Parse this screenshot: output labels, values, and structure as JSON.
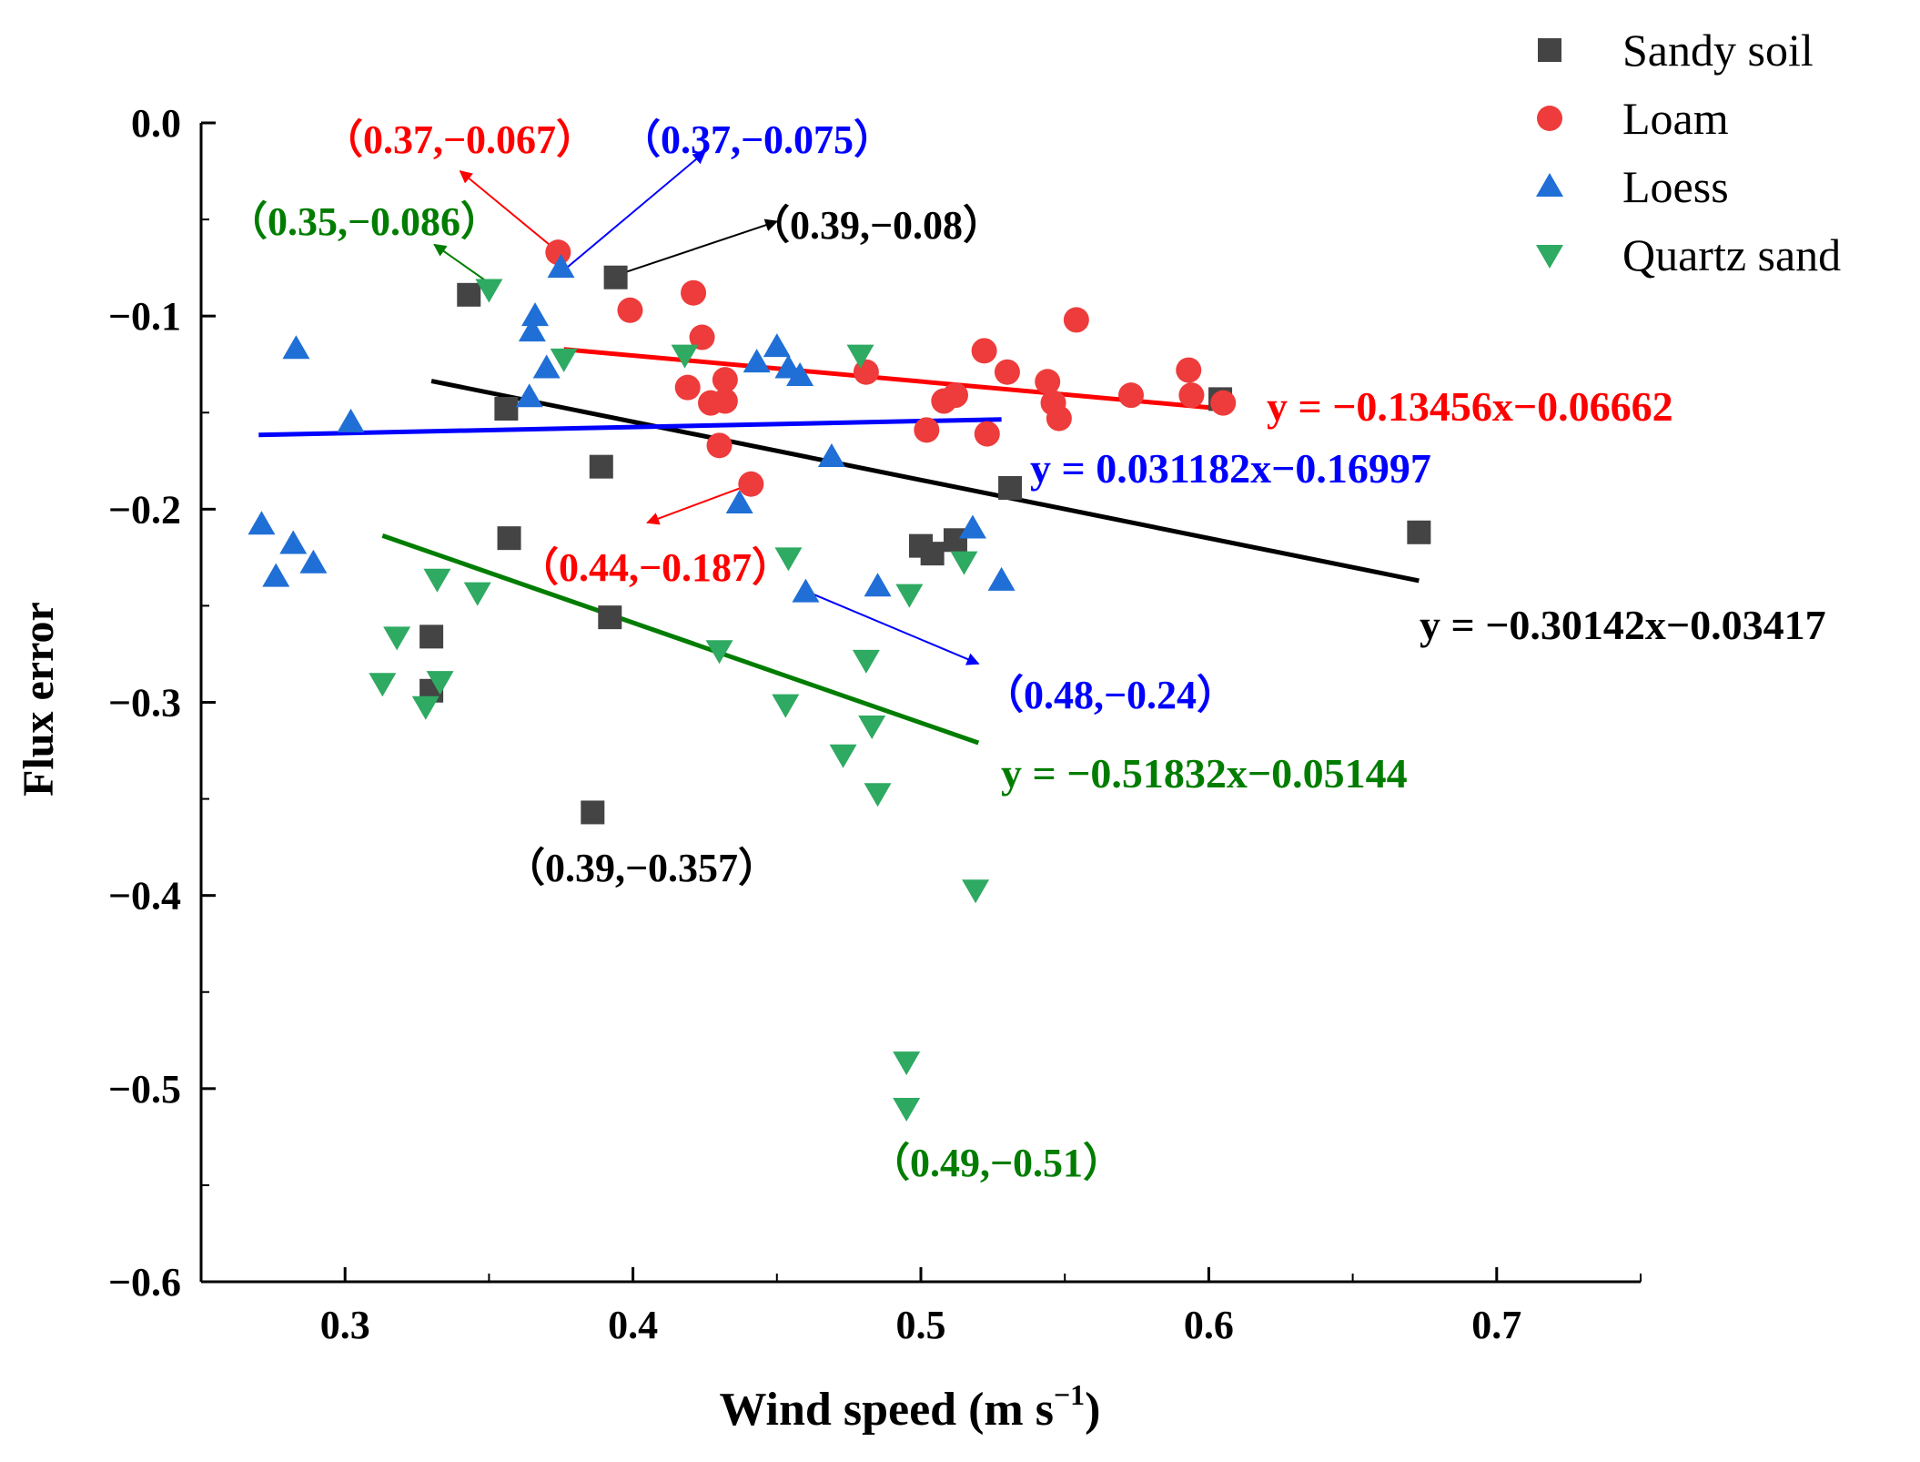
{
  "chart_data": {
    "type": "scatter",
    "xlabel": "Wind speed (m s",
    "xlabel_sup": "−1",
    "xlabel_close": ")",
    "ylabel": "Flux error",
    "xlim": [
      0.25,
      0.75
    ],
    "ylim": [
      -0.6,
      0.0
    ],
    "x_ticks": [
      0.3,
      0.4,
      0.5,
      0.6,
      0.7
    ],
    "x_tick_labels": [
      "0.3",
      "0.4",
      "0.5",
      "0.6",
      "0.7"
    ],
    "y_ticks": [
      0.0,
      -0.1,
      -0.2,
      -0.3,
      -0.4,
      -0.5,
      -0.6
    ],
    "y_tick_labels": [
      "0.0",
      "−0.1",
      "−0.2",
      "−0.3",
      "−0.4",
      "−0.5",
      "−0.6"
    ],
    "legend_position": "top-right",
    "series": [
      {
        "name": "Sandy soil",
        "marker": "square",
        "color": "#444444",
        "points": [
          [
            0.343,
            -0.089
          ],
          [
            0.394,
            -0.08
          ],
          [
            0.356,
            -0.148
          ],
          [
            0.389,
            -0.178
          ],
          [
            0.357,
            -0.215
          ],
          [
            0.392,
            -0.256
          ],
          [
            0.33,
            -0.266
          ],
          [
            0.33,
            -0.294
          ],
          [
            0.386,
            -0.357
          ],
          [
            0.5,
            -0.219
          ],
          [
            0.504,
            -0.223
          ],
          [
            0.512,
            -0.216
          ],
          [
            0.531,
            -0.189
          ],
          [
            0.604,
            -0.143
          ],
          [
            0.673,
            -0.212
          ]
        ],
        "fit": {
          "equation": "y = −0.30142x−0.03417",
          "color": "#000000",
          "x_range": [
            0.33,
            0.673
          ],
          "slope": -0.30142,
          "intercept": -0.03417
        }
      },
      {
        "name": "Loam",
        "marker": "circle",
        "color": "#ee3b3b",
        "points": [
          [
            0.374,
            -0.067
          ],
          [
            0.399,
            -0.097
          ],
          [
            0.421,
            -0.088
          ],
          [
            0.424,
            -0.111
          ],
          [
            0.419,
            -0.137
          ],
          [
            0.427,
            -0.145
          ],
          [
            0.432,
            -0.133
          ],
          [
            0.432,
            -0.144
          ],
          [
            0.43,
            -0.167
          ],
          [
            0.441,
            -0.187
          ],
          [
            0.481,
            -0.129
          ],
          [
            0.502,
            -0.159
          ],
          [
            0.508,
            -0.144
          ],
          [
            0.512,
            -0.141
          ],
          [
            0.522,
            -0.118
          ],
          [
            0.523,
            -0.161
          ],
          [
            0.53,
            -0.129
          ],
          [
            0.544,
            -0.134
          ],
          [
            0.546,
            -0.145
          ],
          [
            0.548,
            -0.153
          ],
          [
            0.554,
            -0.102
          ],
          [
            0.573,
            -0.141
          ],
          [
            0.593,
            -0.128
          ],
          [
            0.594,
            -0.141
          ],
          [
            0.605,
            -0.145
          ]
        ],
        "fit": {
          "equation": "y = −0.13456x−0.06662",
          "color": "#ff0000",
          "x_range": [
            0.376,
            0.6
          ],
          "slope": -0.13456,
          "intercept": -0.06662
        }
      },
      {
        "name": "Loess",
        "marker": "triangle-up",
        "color": "#1f6fd6",
        "points": [
          [
            0.375,
            -0.075
          ],
          [
            0.283,
            -0.117
          ],
          [
            0.302,
            -0.155
          ],
          [
            0.271,
            -0.208
          ],
          [
            0.276,
            -0.235
          ],
          [
            0.282,
            -0.218
          ],
          [
            0.289,
            -0.228
          ],
          [
            0.366,
            -0.1
          ],
          [
            0.365,
            -0.108
          ],
          [
            0.37,
            -0.127
          ],
          [
            0.364,
            -0.142
          ],
          [
            0.443,
            -0.124
          ],
          [
            0.45,
            -0.116
          ],
          [
            0.454,
            -0.127
          ],
          [
            0.458,
            -0.131
          ],
          [
            0.469,
            -0.173
          ],
          [
            0.437,
            -0.197
          ],
          [
            0.46,
            -0.243
          ],
          [
            0.485,
            -0.24
          ],
          [
            0.518,
            -0.21
          ],
          [
            0.528,
            -0.237
          ]
        ],
        "fit": {
          "equation": "y = 0.031182x−0.16997",
          "color": "#0000ff",
          "x_range": [
            0.27,
            0.528
          ],
          "slope": 0.031182,
          "intercept": -0.16997
        }
      },
      {
        "name": "Quartz sand",
        "marker": "triangle-down",
        "color": "#2eaa62",
        "points": [
          [
            0.35,
            -0.086
          ],
          [
            0.376,
            -0.122
          ],
          [
            0.418,
            -0.12
          ],
          [
            0.479,
            -0.12
          ],
          [
            0.332,
            -0.236
          ],
          [
            0.346,
            -0.243
          ],
          [
            0.318,
            -0.266
          ],
          [
            0.313,
            -0.29
          ],
          [
            0.333,
            -0.289
          ],
          [
            0.328,
            -0.302
          ],
          [
            0.43,
            -0.273
          ],
          [
            0.453,
            -0.301
          ],
          [
            0.454,
            -0.225
          ],
          [
            0.473,
            -0.327
          ],
          [
            0.481,
            -0.278
          ],
          [
            0.483,
            -0.312
          ],
          [
            0.485,
            -0.347
          ],
          [
            0.496,
            -0.244
          ],
          [
            0.515,
            -0.227
          ],
          [
            0.519,
            -0.397
          ],
          [
            0.495,
            -0.486
          ],
          [
            0.495,
            -0.51
          ]
        ],
        "fit": {
          "equation": "y = −0.51832x−0.05144",
          "color": "#007d00",
          "x_range": [
            0.313,
            0.52
          ],
          "slope": -0.51832,
          "intercept": -0.05144
        }
      }
    ],
    "annotations": [
      {
        "text": "（0.37,−0.067）",
        "color": "#ff0000",
        "arrow_from": [
          0.375,
          -0.068
        ],
        "arrow_to": [
          0.34,
          -0.025
        ]
      },
      {
        "text": "（0.37,−0.075）",
        "color": "#0000ff",
        "arrow_from": [
          0.377,
          -0.075
        ],
        "arrow_to": [
          0.425,
          -0.015
        ]
      },
      {
        "text": "（0.39,−0.08）",
        "color": "#000000",
        "arrow_from": [
          0.394,
          -0.079
        ],
        "arrow_to": [
          0.45,
          -0.051
        ]
      },
      {
        "text": "（0.35,−0.086）",
        "color": "#007d00",
        "arrow_from": [
          0.352,
          -0.085
        ],
        "arrow_to": [
          0.331,
          -0.063
        ]
      },
      {
        "text": "（0.44,−0.187）",
        "color": "#ff0000",
        "arrow_from": [
          0.441,
          -0.187
        ],
        "arrow_to": [
          0.405,
          -0.207
        ]
      },
      {
        "text": "（0.48,−0.24）",
        "color": "#0000ff",
        "arrow_from": [
          0.461,
          -0.243
        ],
        "arrow_to": [
          0.52,
          -0.28
        ]
      },
      {
        "text": "（0.39,−0.357）",
        "color": "#000000"
      },
      {
        "text": "（0.49,−0.51）",
        "color": "#007d00"
      }
    ]
  }
}
